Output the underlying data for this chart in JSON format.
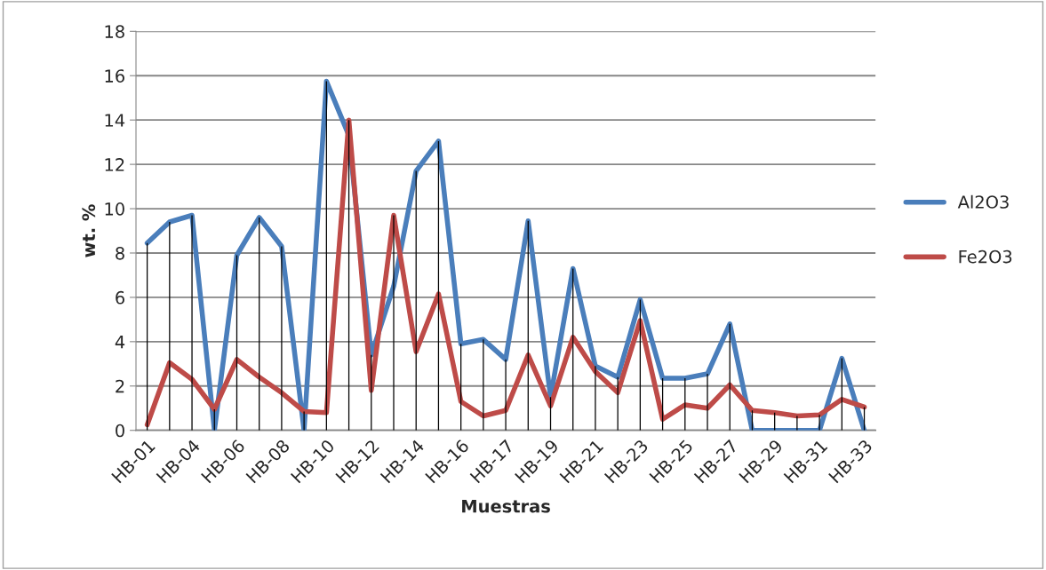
{
  "chart_data": {
    "type": "line",
    "xlabel": "Muestras",
    "ylabel": "wt. %",
    "categories": [
      "HB-01",
      null,
      "HB-04",
      null,
      "HB-06",
      null,
      "HB-08",
      null,
      "HB-10",
      null,
      "HB-12",
      null,
      "HB-14",
      null,
      "HB-16",
      null,
      "HB-17",
      null,
      "HB-19",
      null,
      "HB-21",
      null,
      "HB-23",
      null,
      "HB-25",
      null,
      "HB-27",
      null,
      "HB-29",
      null,
      "HB-31",
      null,
      "HB-33"
    ],
    "series": [
      {
        "name": "Al2O3",
        "color": "#4a7ebb",
        "values": [
          8.45,
          9.4,
          9.7,
          0,
          7.9,
          9.6,
          8.3,
          0,
          15.75,
          13.3,
          3.4,
          6.5,
          11.7,
          13.05,
          3.9,
          4.1,
          3.2,
          9.45,
          1.5,
          7.3,
          2.9,
          2.4,
          5.9,
          2.35,
          2.35,
          2.55,
          4.8,
          0,
          0,
          0,
          0,
          3.25,
          0
        ]
      },
      {
        "name": "Fe2O3",
        "color": "#be4b48",
        "values": [
          0.25,
          3.05,
          2.3,
          0.95,
          3.2,
          2.4,
          1.7,
          0.85,
          0.8,
          14.0,
          1.8,
          9.7,
          3.55,
          6.15,
          1.3,
          0.65,
          0.9,
          3.4,
          1.1,
          4.2,
          2.65,
          1.7,
          4.95,
          0.5,
          1.15,
          1.0,
          2.05,
          0.9,
          0.8,
          0.65,
          0.7,
          1.4,
          1.05
        ]
      },
      {
        "type": "bar",
        "color": "#000000",
        "values": [
          8.45,
          9.4,
          9.7,
          0.95,
          7.9,
          9.6,
          8.3,
          0.85,
          15.75,
          14.0,
          3.4,
          9.7,
          11.7,
          13.05,
          3.9,
          4.1,
          3.2,
          9.45,
          1.5,
          7.3,
          2.9,
          2.4,
          5.9,
          2.35,
          2.35,
          2.55,
          4.8,
          0.9,
          0.8,
          0.65,
          0.7,
          3.25,
          1.05
        ]
      }
    ],
    "ylim": [
      0,
      18
    ],
    "yticks": [
      0,
      2,
      4,
      6,
      8,
      10,
      12,
      14,
      16,
      18
    ],
    "grid": "y",
    "legend": "right",
    "marker": "none",
    "line_style": "solid"
  }
}
